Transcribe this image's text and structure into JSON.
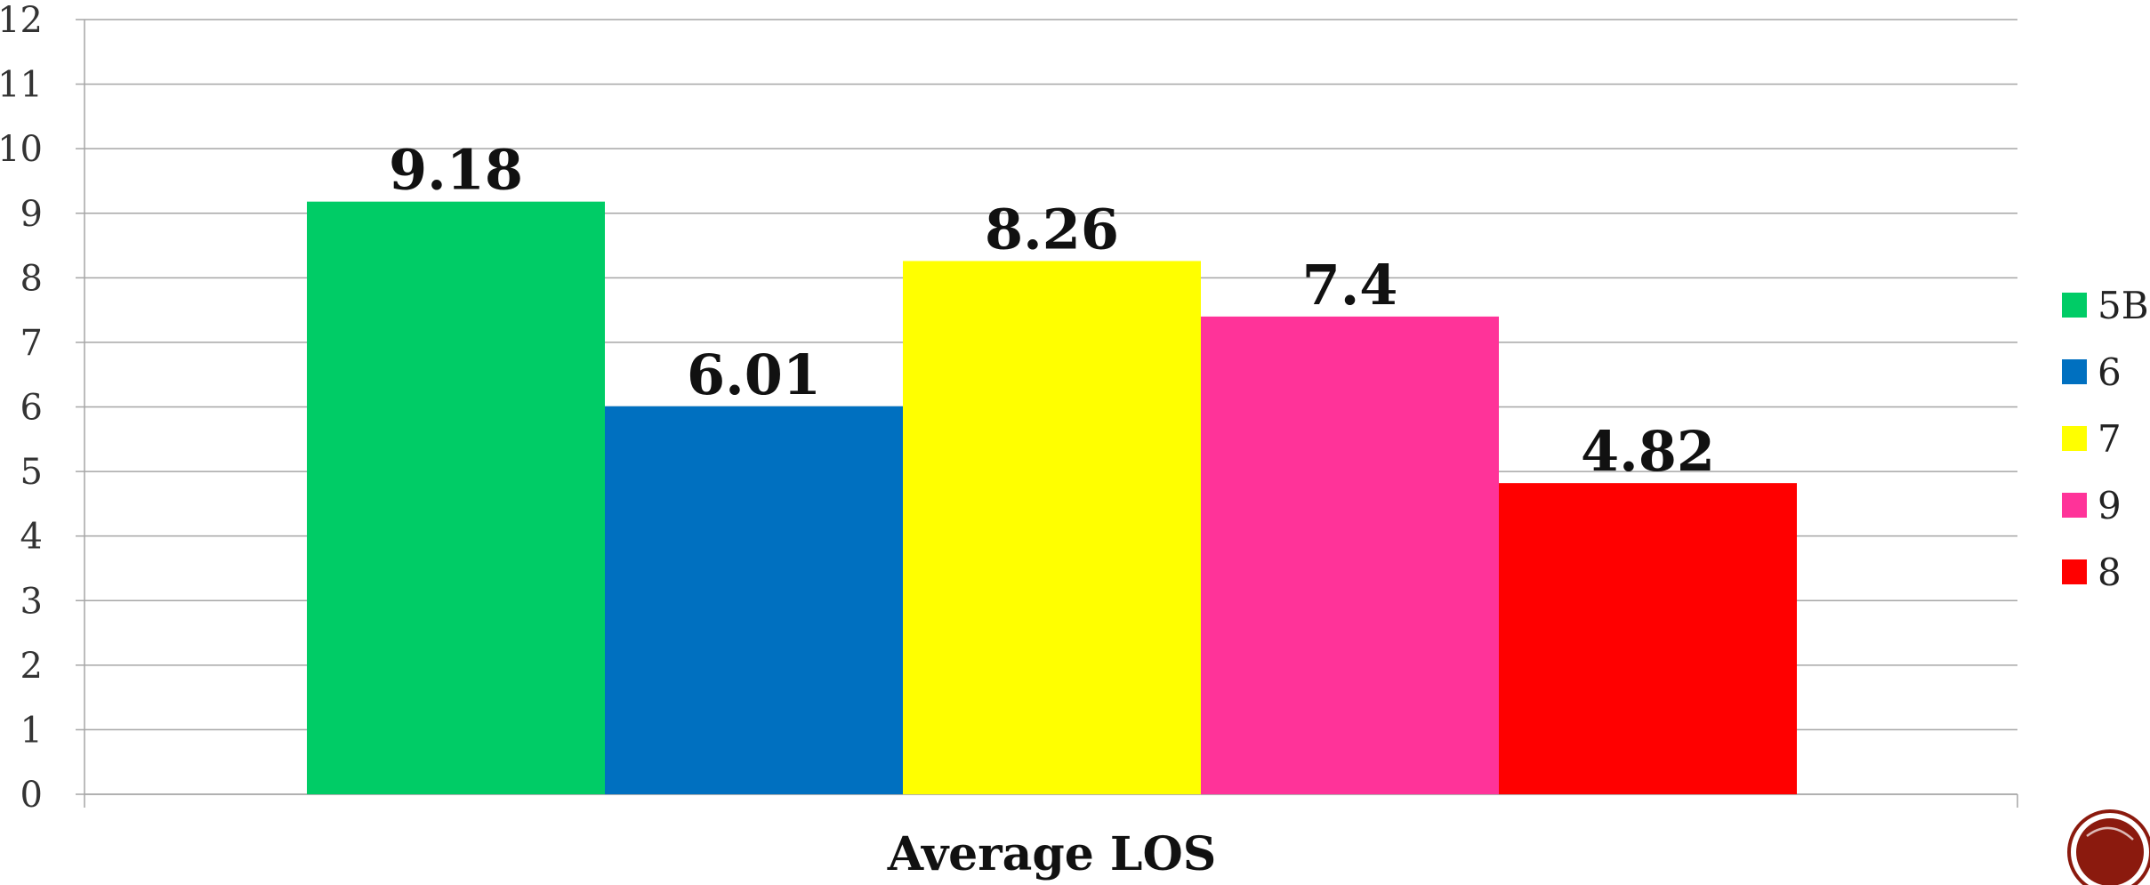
{
  "chart_data": {
    "type": "bar",
    "categories": [
      "Average LOS"
    ],
    "series": [
      {
        "name": "5B",
        "values": [
          9.18
        ],
        "color": "#00CC66"
      },
      {
        "name": "6",
        "values": [
          6.01
        ],
        "color": "#0070C0"
      },
      {
        "name": "7",
        "values": [
          8.26
        ],
        "color": "#FFFF00"
      },
      {
        "name": "9",
        "values": [
          7.4
        ],
        "color": "#FF3399"
      },
      {
        "name": "8",
        "values": [
          4.82
        ],
        "color": "#FF0000"
      }
    ],
    "data_labels": [
      "9.18",
      "6.01",
      "8.26",
      "7.4",
      "4.82"
    ],
    "y_ticks": [
      "0",
      "1",
      "2",
      "3",
      "4",
      "5",
      "6",
      "7",
      "8",
      "9",
      "10",
      "11",
      "12"
    ],
    "ylim": [
      0,
      12
    ],
    "grid": true,
    "legend_position": "right",
    "title": "",
    "xlabel": "",
    "ylabel": ""
  },
  "colors": {
    "gridline": "#A6A6A6",
    "axis": "#A6A6A6",
    "logo_ring": "#8B1A0E",
    "logo_fill": "#8B1A0E"
  },
  "decoration": {
    "logo_icon": "circle-emblem-icon"
  }
}
